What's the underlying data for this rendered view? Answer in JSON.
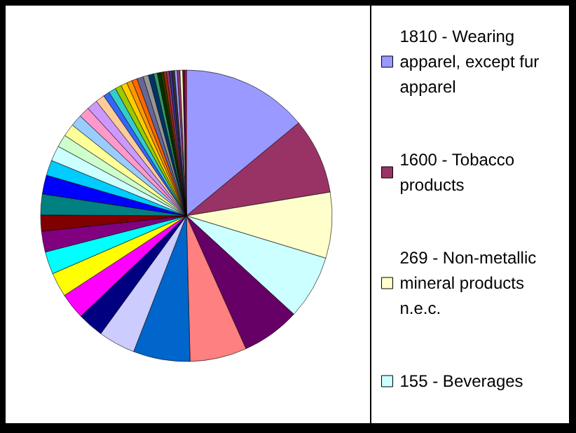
{
  "chart_data": {
    "type": "pie",
    "categories": [
      "1810 - Wearing apparel, except fur apparel",
      "1600 - Tobacco products",
      "269 - Non-metallic mineral products n.e.c.",
      "155 - Beverages",
      null,
      null,
      null,
      null,
      null,
      null,
      null,
      null,
      null,
      null,
      null,
      null,
      null,
      null,
      null,
      null,
      null,
      null,
      null,
      null,
      null,
      null,
      null,
      null,
      null,
      null,
      null,
      null,
      null,
      null,
      null,
      null,
      null,
      null,
      null,
      null,
      null,
      null,
      null,
      null,
      null
    ],
    "values": [
      14,
      8.4,
      7.3,
      7.1,
      6.5,
      6.3,
      6.3,
      4.1,
      2.9,
      2.9,
      2.7,
      2.5,
      2.3,
      1.8,
      2.3,
      2.1,
      1.7,
      1.7,
      1.4,
      1.4,
      1.3,
      1.2,
      1.2,
      1.0,
      0.7,
      0.8,
      0.7,
      0.7,
      0.6,
      0.6,
      0.7,
      0.6,
      0.6,
      0.4,
      0.4,
      0.3,
      0.3,
      0.3,
      0.3,
      0.3,
      0.3,
      0.3,
      0.3,
      0.2,
      0.2
    ],
    "colors": [
      "#9999ff",
      "#993366",
      "#ffffcc",
      "#ccffff",
      "#660066",
      "#ff8080",
      "#0066cc",
      "#ccccff",
      "#000080",
      "#ff00ff",
      "#ffff00",
      "#00ffff",
      "#800080",
      "#800000",
      "#008080",
      "#0000ff",
      "#00ccff",
      "#ccffff",
      "#ccffcc",
      "#ffff99",
      "#99ccff",
      "#ff99cc",
      "#cc99ff",
      "#ffcc99",
      "#3366ff",
      "#33cccc",
      "#99cc00",
      "#ffcc00",
      "#ff9900",
      "#ff6600",
      "#666699",
      "#969696",
      "#003366",
      "#339966",
      "#003300",
      "#333300",
      "#993300",
      "#993366",
      "#333399",
      "#333333",
      "#9999ff",
      "#993366",
      "#ffffcc",
      "#660066",
      "#ff0000"
    ],
    "legend": "right"
  }
}
